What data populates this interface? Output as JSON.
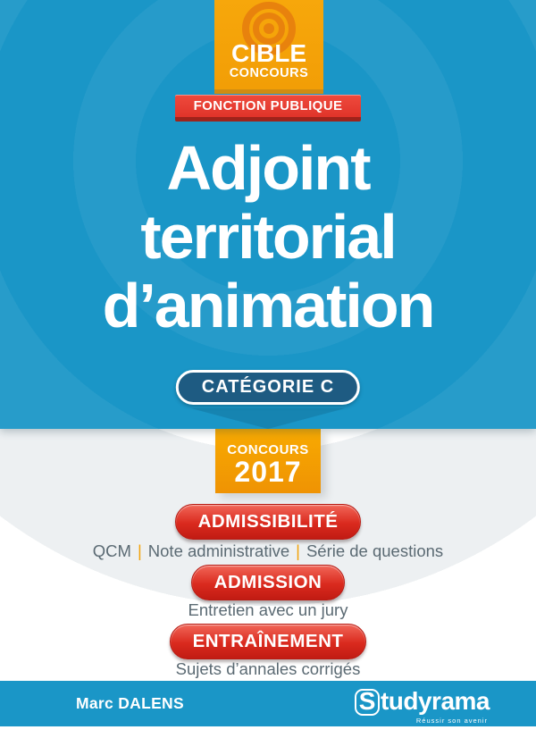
{
  "colors": {
    "blue": "#1a96c7",
    "navy": "#1e5b82",
    "orange": "#f5a60b",
    "orange_dark": "#e8820d",
    "red": "#da2a1e",
    "gray_text": "#5b6a73"
  },
  "collection": {
    "logo_icon": "bullseye-target-icon",
    "name_line1": "CIBLE",
    "name_line2": "CONCOURS"
  },
  "series_banner": "FONCTION PUBLIQUE",
  "title_lines": [
    "Adjoint",
    "territorial",
    "d’animation"
  ],
  "category_badge": "CATÉGORIE C",
  "edition_badge": {
    "line1": "CONCOURS",
    "line2": "2017"
  },
  "sections": [
    {
      "label": "ADMISSIBILITÉ",
      "separator": "|",
      "desc_parts": [
        "QCM",
        "Note administrative",
        "Série de questions"
      ]
    },
    {
      "label": "ADMISSION",
      "desc": "Entretien avec un jury"
    },
    {
      "label": "ENTRAÎNEMENT",
      "desc": "Sujets d’annales corrigés"
    }
  ],
  "footer": {
    "author": "Marc DALENS",
    "publisher_initial": "S",
    "publisher_rest": "tudyrama",
    "tagline": "Réussir son avenir"
  }
}
